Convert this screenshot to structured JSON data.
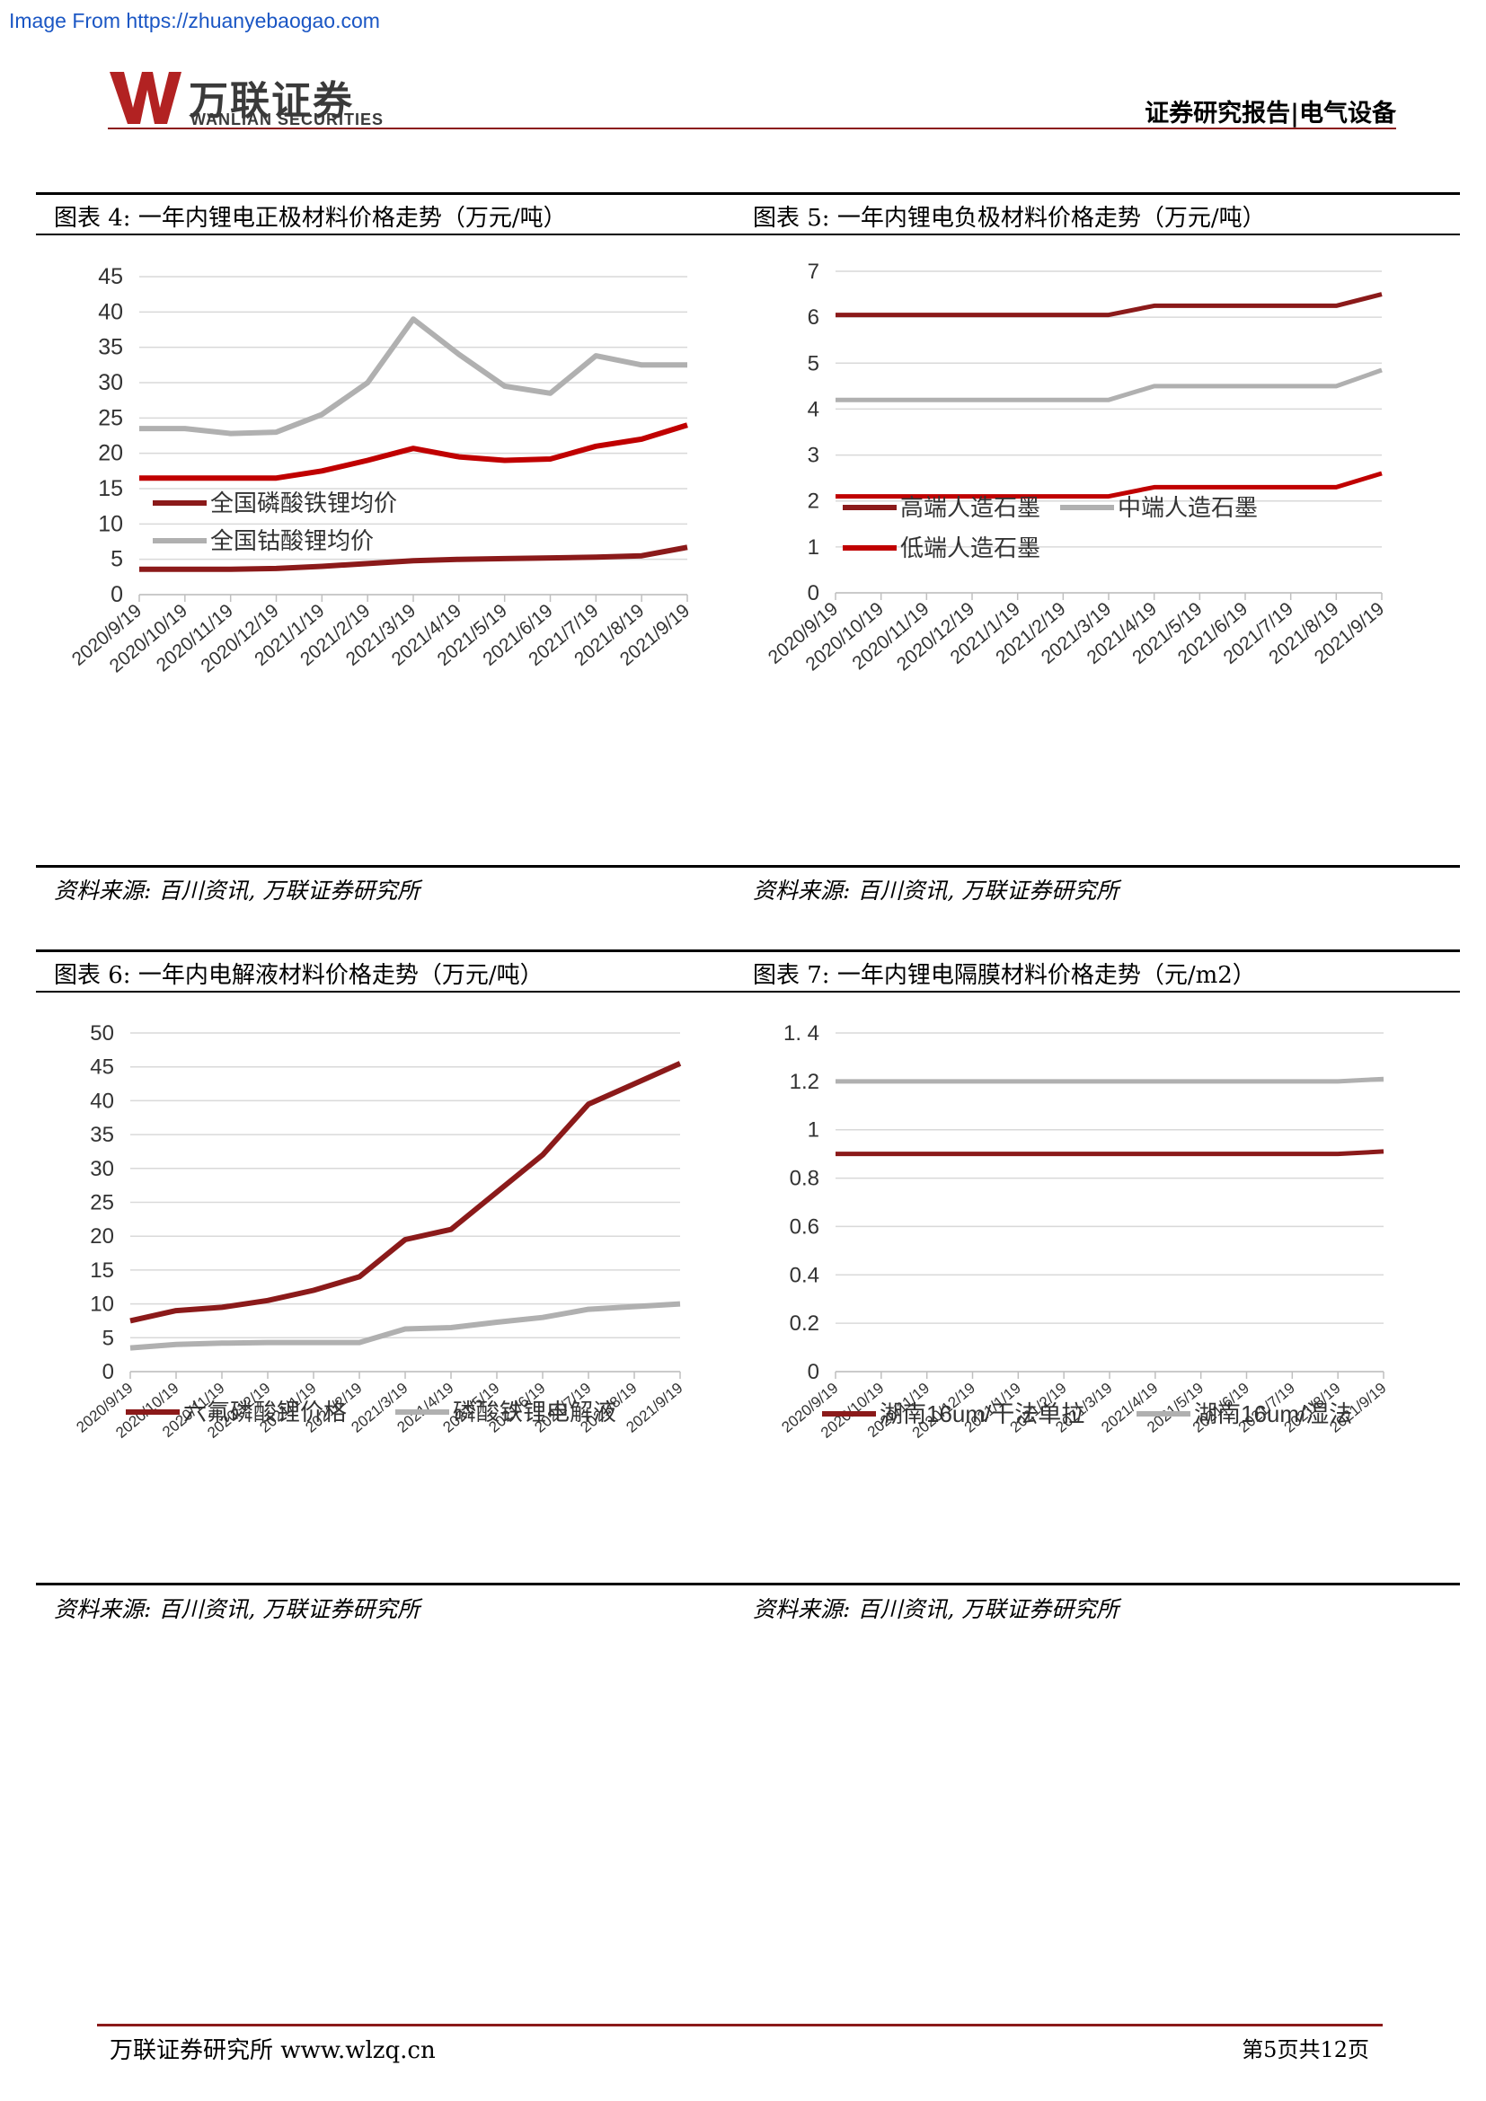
{
  "watermark": "Image From https://zhuanyebaogao.com",
  "header": {
    "logo_cn": "万联证券",
    "logo_en": "WANLIAN SECURITIES",
    "title": "证券研究报告|电气设备"
  },
  "colors": {
    "dark_red": "#8b1a1a",
    "red": "#c00000",
    "gray": "#b0b0b0",
    "accent": "#8b1a1a"
  },
  "figures": [
    {
      "title": "图表 4:  一年内锂电正极材料价格走势（万元/吨）",
      "source": "资料来源:  百川资讯,  万联证券研究所"
    },
    {
      "title": "图表 5:  一年内锂电负极材料价格走势（万元/吨）",
      "source": "资料来源:  百川资讯,  万联证券研究所"
    },
    {
      "title": "图表 6:  一年内电解液材料价格走势（万元/吨）",
      "source": "资料来源:  百川资讯,  万联证券研究所"
    },
    {
      "title": "图表 7:  一年内锂电隔膜材料价格走势（元/m2）",
      "source": "资料来源:  百川资讯,  万联证券研究所"
    }
  ],
  "chart_data": [
    {
      "type": "line",
      "x": [
        "2020/9/19",
        "2020/10/19",
        "2020/11/19",
        "2020/12/19",
        "2021/1/19",
        "2021/2/19",
        "2021/3/19",
        "2021/4/19",
        "2021/5/19",
        "2021/6/19",
        "2021/7/19",
        "2021/8/19",
        "2021/9/19"
      ],
      "ylim": [
        0,
        45
      ],
      "yticks": [
        0,
        5,
        10,
        15,
        20,
        25,
        30,
        35,
        40,
        45
      ],
      "grid": true,
      "legend_position": "bottom",
      "series": [
        {
          "name": "全国磷酸铁锂均价",
          "color": "#8b1a1a",
          "values": [
            3.6,
            3.6,
            3.6,
            3.7,
            4.0,
            4.4,
            4.8,
            5.0,
            5.1,
            5.2,
            5.3,
            5.5,
            6.7
          ]
        },
        {
          "name": "全国钴酸锂均价",
          "color": "#b0b0b0",
          "values": [
            23.5,
            23.5,
            22.8,
            23.0,
            25.5,
            30.0,
            39.0,
            34.0,
            29.5,
            28.5,
            33.8,
            32.5,
            32.5
          ]
        },
        {
          "name": "",
          "color": "#c00000",
          "values": [
            16.5,
            16.5,
            16.5,
            16.5,
            17.5,
            19.0,
            20.7,
            19.5,
            19.0,
            19.2,
            21.0,
            22.0,
            24.0
          ]
        }
      ]
    },
    {
      "type": "line",
      "x": [
        "2020/9/19",
        "2020/10/19",
        "2020/11/19",
        "2020/12/19",
        "2021/1/19",
        "2021/2/19",
        "2021/3/19",
        "2021/4/19",
        "2021/5/19",
        "2021/6/19",
        "2021/7/19",
        "2021/8/19",
        "2021/9/19"
      ],
      "ylim": [
        0,
        7
      ],
      "yticks": [
        0,
        1,
        2,
        3,
        4,
        5,
        6,
        7
      ],
      "grid": true,
      "legend_position": "bottom",
      "series": [
        {
          "name": "高端人造石墨",
          "color": "#8b1a1a",
          "values": [
            6.05,
            6.05,
            6.05,
            6.05,
            6.05,
            6.05,
            6.05,
            6.25,
            6.25,
            6.25,
            6.25,
            6.25,
            6.5
          ]
        },
        {
          "name": "中端人造石墨",
          "color": "#b0b0b0",
          "values": [
            4.2,
            4.2,
            4.2,
            4.2,
            4.2,
            4.2,
            4.2,
            4.5,
            4.5,
            4.5,
            4.5,
            4.5,
            4.85
          ]
        },
        {
          "name": "低端人造石墨",
          "color": "#c00000",
          "values": [
            2.1,
            2.1,
            2.1,
            2.1,
            2.1,
            2.1,
            2.1,
            2.3,
            2.3,
            2.3,
            2.3,
            2.3,
            2.6
          ]
        }
      ]
    },
    {
      "type": "line",
      "x": [
        "2020/9/19",
        "2020/10/19",
        "2020/11/19",
        "2020/12/19",
        "2021/1/19",
        "2021/2/19",
        "2021/3/19",
        "2021/4/19",
        "2021/5/19",
        "2021/6/19",
        "2021/7/19",
        "2021/8/19",
        "2021/9/19"
      ],
      "ylim": [
        0,
        50
      ],
      "yticks": [
        0,
        5,
        10,
        15,
        20,
        25,
        30,
        35,
        40,
        45,
        50
      ],
      "grid": true,
      "legend_position": "bottom",
      "series": [
        {
          "name": "六氟磷酸锂价格",
          "color": "#8b1a1a",
          "values": [
            7.5,
            9.0,
            9.5,
            10.5,
            12.0,
            14.0,
            19.5,
            21.0,
            26.5,
            32.0,
            39.5,
            42.5,
            45.5
          ]
        },
        {
          "name": "磷酸铁锂电解液",
          "color": "#b0b0b0",
          "values": [
            3.5,
            4.0,
            4.2,
            4.3,
            4.3,
            4.3,
            6.3,
            6.5,
            7.3,
            8.0,
            9.2,
            9.6,
            10.0
          ]
        }
      ]
    },
    {
      "type": "line",
      "x": [
        "2020/9/19",
        "2020/10/19",
        "2020/11/19",
        "2020/12/19",
        "2021/1/19",
        "2021/2/19",
        "2021/3/19",
        "2021/4/19",
        "2021/5/19",
        "2021/6/19",
        "2021/7/19",
        "2021/8/19",
        "2021/9/19"
      ],
      "ylim": [
        0,
        1.4
      ],
      "yticks": [
        "0",
        "0.2",
        "0.4",
        "0.6",
        "0.8",
        "1",
        "1.2",
        "1. 4"
      ],
      "grid": true,
      "legend_position": "bottom",
      "series": [
        {
          "name": "湖南16um/干法单拉",
          "color": "#8b1a1a",
          "values": [
            0.9,
            0.9,
            0.9,
            0.9,
            0.9,
            0.9,
            0.9,
            0.9,
            0.9,
            0.9,
            0.9,
            0.9,
            0.91
          ]
        },
        {
          "name": "湖南16um/湿法",
          "color": "#b0b0b0",
          "values": [
            1.2,
            1.2,
            1.2,
            1.2,
            1.2,
            1.2,
            1.2,
            1.2,
            1.2,
            1.2,
            1.2,
            1.2,
            1.21
          ]
        }
      ]
    }
  ],
  "footer": {
    "left": "万联证券研究所  www.wlzq.cn",
    "right": "第5页共12页"
  }
}
